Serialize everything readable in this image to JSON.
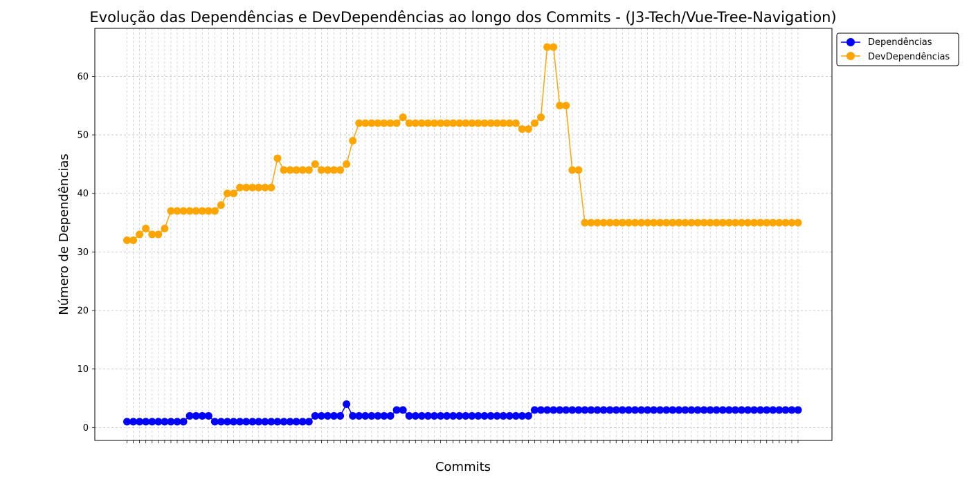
{
  "chart_data": {
    "type": "line",
    "title": "Evolução das Dependências e DevDependências ao longo dos Commits - (J3-Tech/Vue-Tree-Navigation)",
    "xlabel": "Commits",
    "ylabel": "Número de Dependências",
    "ylim": [
      -2.2,
      68.2
    ],
    "yticks": [
      0,
      10,
      20,
      30,
      40,
      50,
      60
    ],
    "grid": true,
    "legend_position": "outside-top-right",
    "x_tick_labels_note": "108 commit hash labels, overlapping and illegible",
    "series": [
      {
        "name": "Dependências",
        "color": "#0000ff",
        "values": [
          1,
          1,
          1,
          1,
          1,
          1,
          1,
          1,
          1,
          1,
          2,
          2,
          2,
          2,
          1,
          1,
          1,
          1,
          1,
          1,
          1,
          1,
          1,
          1,
          1,
          1,
          1,
          1,
          1,
          1,
          2,
          2,
          2,
          2,
          2,
          4,
          2,
          2,
          2,
          2,
          2,
          2,
          2,
          3,
          3,
          2,
          2,
          2,
          2,
          2,
          2,
          2,
          2,
          2,
          2,
          2,
          2,
          2,
          2,
          2,
          2,
          2,
          2,
          2,
          2,
          3,
          3,
          3,
          3,
          3,
          3,
          3,
          3,
          3,
          3,
          3,
          3,
          3,
          3,
          3,
          3,
          3,
          3,
          3,
          3,
          3,
          3,
          3,
          3,
          3,
          3,
          3,
          3,
          3,
          3,
          3,
          3,
          3,
          3,
          3,
          3,
          3,
          3,
          3,
          3,
          3,
          3,
          3
        ]
      },
      {
        "name": "DevDependências",
        "color": "#ffa500",
        "values": [
          32,
          32,
          33,
          34,
          33,
          33,
          34,
          37,
          37,
          37,
          37,
          37,
          37,
          37,
          37,
          38,
          40,
          40,
          41,
          41,
          41,
          41,
          41,
          41,
          46,
          44,
          44,
          44,
          44,
          44,
          45,
          44,
          44,
          44,
          44,
          45,
          49,
          52,
          52,
          52,
          52,
          52,
          52,
          52,
          53,
          52,
          52,
          52,
          52,
          52,
          52,
          52,
          52,
          52,
          52,
          52,
          52,
          52,
          52,
          52,
          52,
          52,
          52,
          51,
          51,
          52,
          53,
          65,
          65,
          55,
          55,
          44,
          44,
          35,
          35,
          35,
          35,
          35,
          35,
          35,
          35,
          35,
          35,
          35,
          35,
          35,
          35,
          35,
          35,
          35,
          35,
          35,
          35,
          35,
          35,
          35,
          35,
          35,
          35,
          35,
          35,
          35,
          35,
          35,
          35,
          35,
          35,
          35
        ]
      }
    ]
  }
}
